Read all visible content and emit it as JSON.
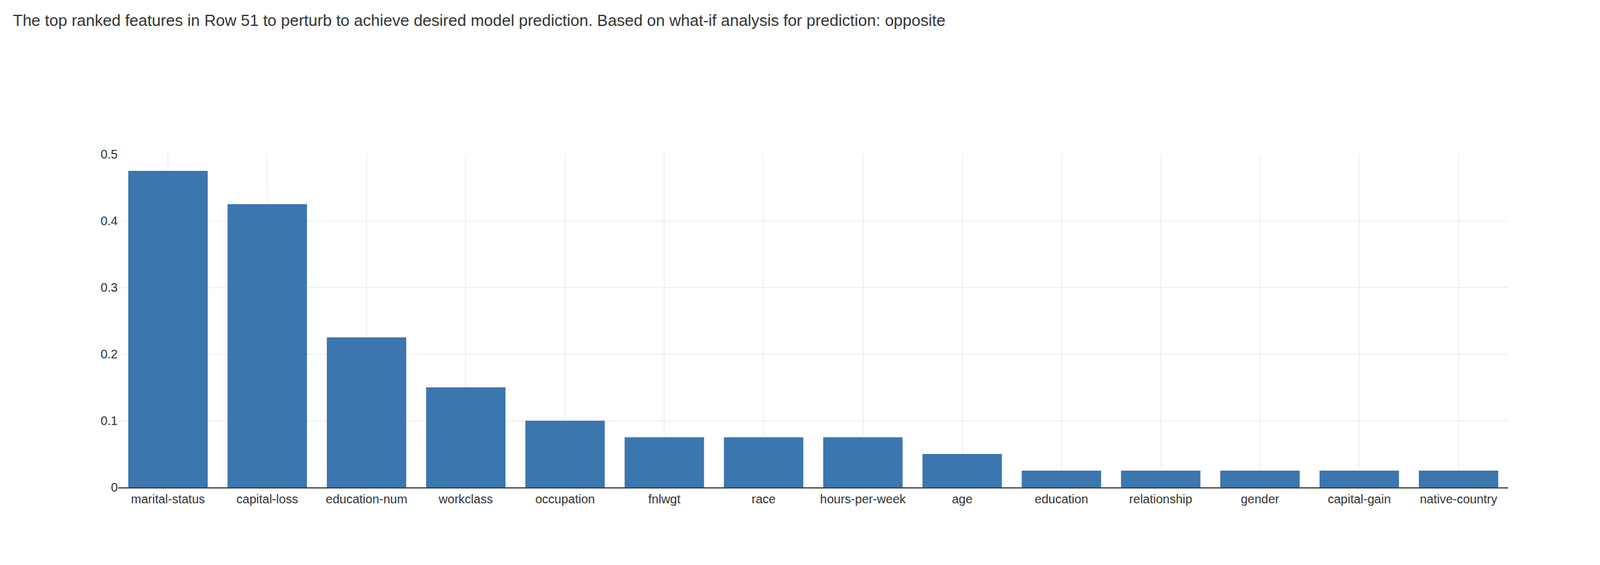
{
  "chart_data": {
    "type": "bar",
    "title": "The top ranked features in Row 51 to perturb to achieve desired model prediction. Based on what-if analysis for prediction: opposite",
    "categories": [
      "marital-status",
      "capital-loss",
      "education-num",
      "workclass",
      "occupation",
      "fnlwgt",
      "race",
      "hours-per-week",
      "age",
      "education",
      "relationship",
      "gender",
      "capital-gain",
      "native-country"
    ],
    "values": [
      0.475,
      0.425,
      0.225,
      0.15,
      0.1,
      0.075,
      0.075,
      0.075,
      0.05,
      0.025,
      0.025,
      0.025,
      0.025,
      0.025
    ],
    "color": "#3b76af",
    "ylim": [
      0,
      0.5
    ],
    "yticks": [
      0,
      0.1,
      0.2,
      0.3,
      0.4,
      0.5
    ],
    "grid": true
  }
}
